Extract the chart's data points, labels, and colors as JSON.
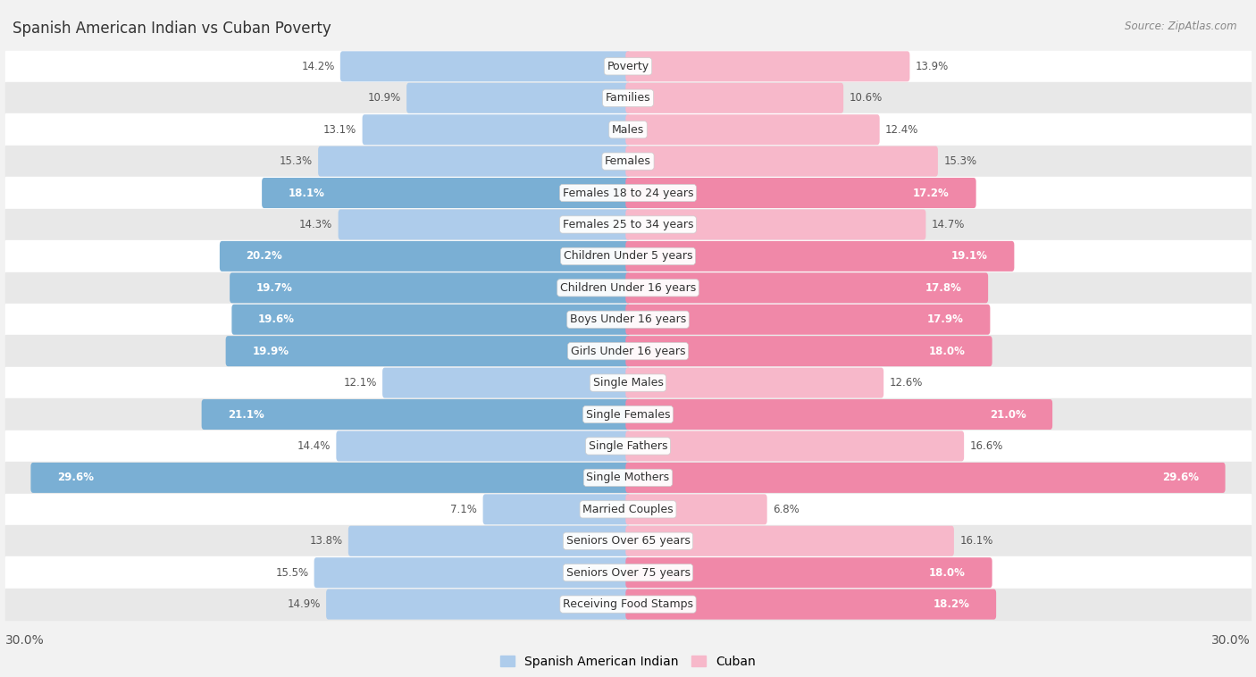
{
  "title": "Spanish American Indian vs Cuban Poverty",
  "source": "Source: ZipAtlas.com",
  "categories": [
    "Poverty",
    "Families",
    "Males",
    "Females",
    "Females 18 to 24 years",
    "Females 25 to 34 years",
    "Children Under 5 years",
    "Children Under 16 years",
    "Boys Under 16 years",
    "Girls Under 16 years",
    "Single Males",
    "Single Females",
    "Single Fathers",
    "Single Mothers",
    "Married Couples",
    "Seniors Over 65 years",
    "Seniors Over 75 years",
    "Receiving Food Stamps"
  ],
  "spanish_values": [
    14.2,
    10.9,
    13.1,
    15.3,
    18.1,
    14.3,
    20.2,
    19.7,
    19.6,
    19.9,
    12.1,
    21.1,
    14.4,
    29.6,
    7.1,
    13.8,
    15.5,
    14.9
  ],
  "cuban_values": [
    13.9,
    10.6,
    12.4,
    15.3,
    17.2,
    14.7,
    19.1,
    17.8,
    17.9,
    18.0,
    12.6,
    21.0,
    16.6,
    29.6,
    6.8,
    16.1,
    18.0,
    18.2
  ],
  "spanish_color_light": "#aecceb",
  "spanish_color_dark": "#7aafd4",
  "cuban_color_light": "#f7b8ca",
  "cuban_color_dark": "#f088a8",
  "bg_color": "#f2f2f2",
  "row_bg_even": "#ffffff",
  "row_bg_odd": "#e8e8e8",
  "max_val": 30.0,
  "label_fontsize": 9.0,
  "value_fontsize": 8.5,
  "title_fontsize": 12,
  "legend_fontsize": 10,
  "highlight_threshold": 17.0
}
